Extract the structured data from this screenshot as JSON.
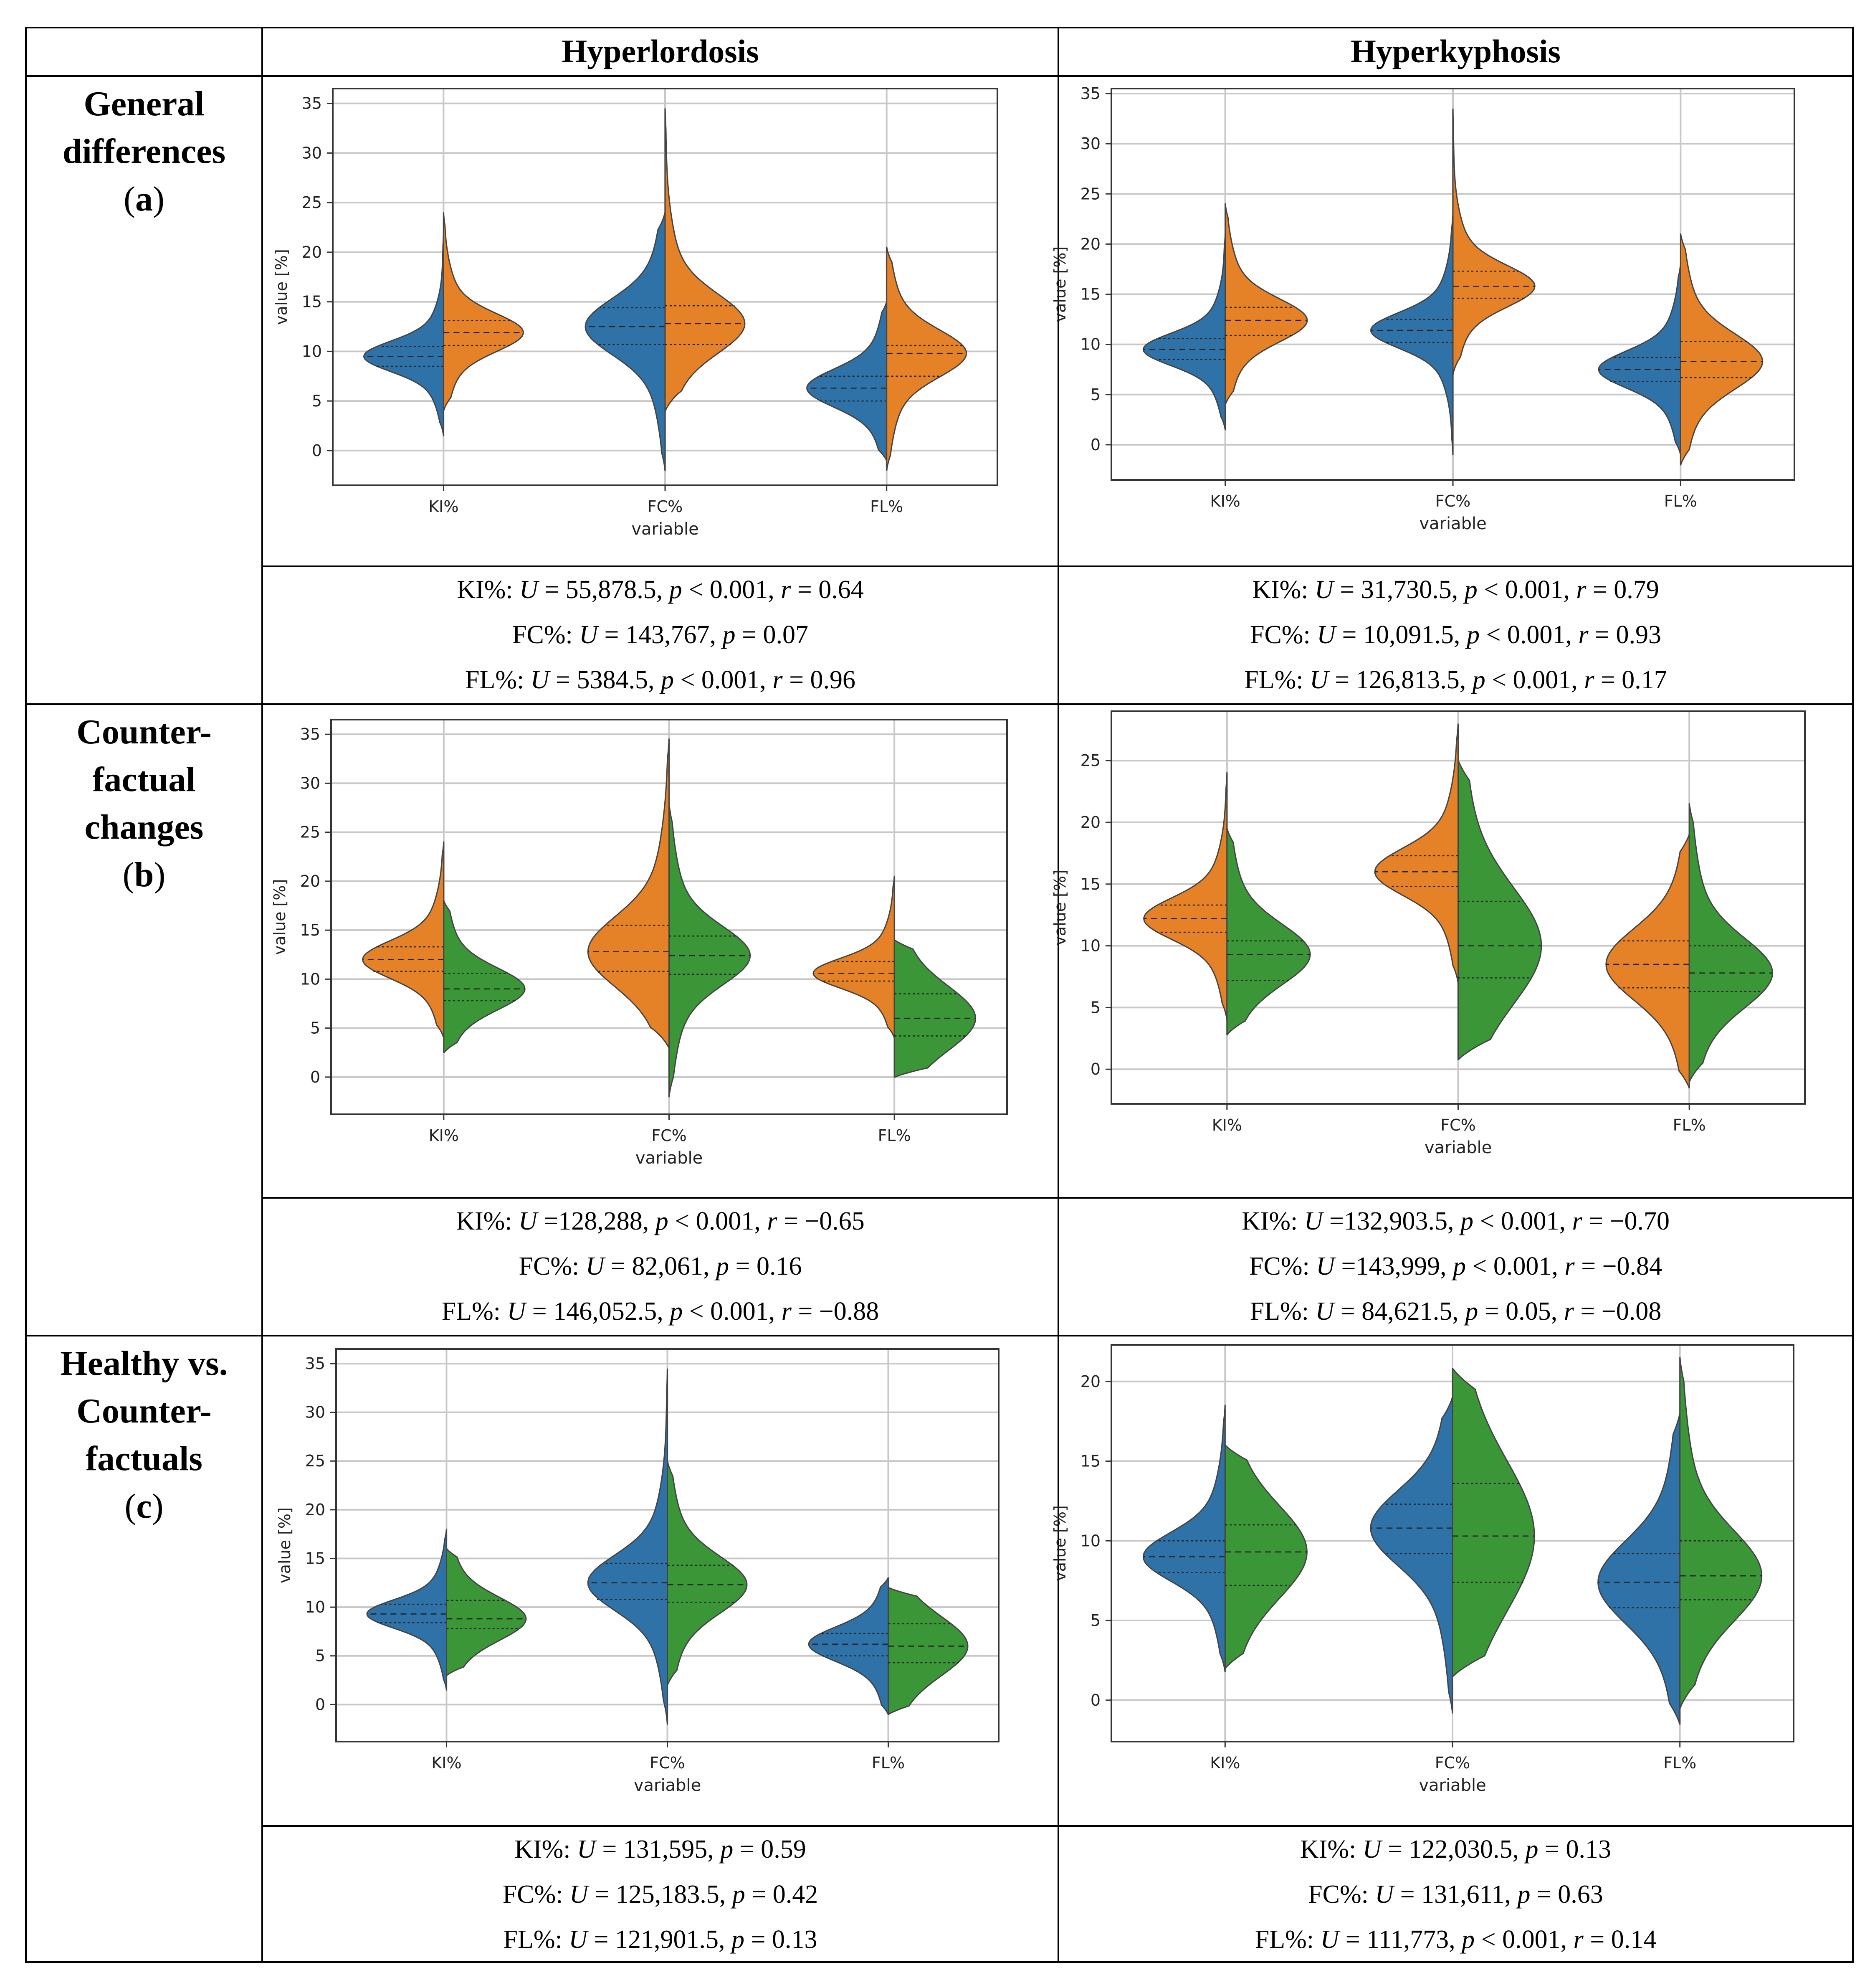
{
  "header": {
    "col1": "Hyperlordosis",
    "col2": "Hyperkyphosis"
  },
  "rows": [
    {
      "label": "General\ndifferences",
      "letter": "a"
    },
    {
      "label": "Counter-\nfactual\nchanges",
      "letter": "b"
    },
    {
      "label": "Healthy vs.\nCounter-\nfactuals",
      "letter": "c"
    }
  ],
  "colors": {
    "blue": "#2e72a8",
    "orange": "#e58126",
    "green": "#3a9637",
    "grid": "#c8c8c8"
  },
  "stats": [
    [
      [
        {
          "var": "KI%",
          "U": "55,878.5",
          "prel": "<",
          "p": "0.001",
          "r": "0.64"
        },
        {
          "var": "FC%",
          "U": "143,767",
          "prel": "=",
          "p": "0.07",
          "r": null
        },
        {
          "var": "FL%",
          "U": "5384.5",
          "prel": "<",
          "p": "0.001",
          "r": "0.96"
        }
      ],
      [
        {
          "var": "KI%",
          "U": "31,730.5",
          "prel": "<",
          "p": "0.001",
          "r": "0.79"
        },
        {
          "var": "FC%",
          "U": "10,091.5",
          "prel": "<",
          "p": "0.001",
          "r": "0.93"
        },
        {
          "var": "FL%",
          "U": "126,813.5",
          "prel": "<",
          "p": "0.001",
          "r": "0.17"
        }
      ]
    ],
    [
      [
        {
          "var": "KI%",
          "U": "128,288",
          "prel": "<",
          "p": "0.001",
          "r": "−0.65",
          "tight": true
        },
        {
          "var": "FC%",
          "U": "82,061",
          "prel": "=",
          "p": "0.16",
          "r": null
        },
        {
          "var": "FL%",
          "U": "146,052.5",
          "prel": "<",
          "p": "0.001",
          "r": "−0.88"
        }
      ],
      [
        {
          "var": "KI%",
          "U": "132,903.5",
          "prel": "<",
          "p": "0.001",
          "r": "−0.70",
          "tight": true
        },
        {
          "var": "FC%",
          "U": "143,999",
          "prel": "<",
          "p": "0.001",
          "r": "−0.84",
          "tight": true
        },
        {
          "var": "FL%",
          "U": "84,621.5",
          "prel": "=",
          "p": "0.05",
          "r": "−0.08"
        }
      ]
    ],
    [
      [
        {
          "var": "KI%",
          "U": "131,595",
          "prel": "=",
          "p": "0.59",
          "r": null
        },
        {
          "var": "FC%",
          "U": "125,183.5",
          "prel": "=",
          "p": "0.42",
          "r": null
        },
        {
          "var": "FL%",
          "U": "121,901.5",
          "prel": "=",
          "p": "0.13",
          "r": null
        }
      ],
      [
        {
          "var": "KI%",
          "U": "122,030.5",
          "prel": "=",
          "p": "0.13",
          "r": null
        },
        {
          "var": "FC%",
          "U": "131,611",
          "prel": "=",
          "p": "0.63",
          "r": null
        },
        {
          "var": "FL%",
          "U": "111,773",
          "prel": "<",
          "p": "0.001",
          "r": "0.14"
        }
      ]
    ]
  ],
  "chart_data": [
    {
      "id": "hl-a",
      "type": "violin",
      "split": true,
      "categories": [
        "KI%",
        "FC%",
        "FL%"
      ],
      "xlabel": "variable",
      "ylabel": "value [%]",
      "yticks": [
        0,
        5,
        10,
        15,
        20,
        25,
        30,
        35
      ],
      "ylim": [
        -3.5,
        36.5
      ],
      "colors": [
        "blue",
        "orange"
      ],
      "violins": [
        {
          "left": {
            "min": 1.5,
            "max": 22,
            "median": 9.5,
            "q1": 8.5,
            "q3": 10.5
          },
          "right": {
            "min": 4,
            "max": 24,
            "median": 11.9,
            "q1": 10.6,
            "q3": 13.1
          }
        },
        {
          "left": {
            "min": -2,
            "max": 24,
            "median": 12.5,
            "q1": 10.7,
            "q3": 14.4
          },
          "right": {
            "min": 4,
            "max": 34.5,
            "median": 12.8,
            "q1": 10.7,
            "q3": 14.6
          }
        },
        {
          "left": {
            "min": -1,
            "max": 15,
            "median": 6.3,
            "q1": 5,
            "q3": 7.5
          },
          "right": {
            "min": -2,
            "max": 20.5,
            "median": 9.8,
            "q1": 7.5,
            "q3": 10.6
          }
        }
      ]
    },
    {
      "id": "hk-a",
      "type": "violin",
      "split": true,
      "categories": [
        "KI%",
        "FC%",
        "FL%"
      ],
      "xlabel": "variable",
      "ylabel": "value [%]",
      "yticks": [
        0,
        5,
        10,
        15,
        20,
        25,
        30,
        35
      ],
      "ylim": [
        -3.5,
        35.5
      ],
      "colors": [
        "blue",
        "orange"
      ],
      "violins": [
        {
          "left": {
            "min": 1.5,
            "max": 21,
            "median": 9.5,
            "q1": 8.5,
            "q3": 10.6
          },
          "right": {
            "min": 4,
            "max": 24,
            "median": 12.4,
            "q1": 10.9,
            "q3": 13.7
          }
        },
        {
          "left": {
            "min": -1,
            "max": 23,
            "median": 11.4,
            "q1": 10.2,
            "q3": 12.5
          },
          "right": {
            "min": 7,
            "max": 33.5,
            "median": 15.8,
            "q1": 14.6,
            "q3": 17.3
          }
        },
        {
          "left": {
            "min": -1,
            "max": 18,
            "median": 7.5,
            "q1": 6.3,
            "q3": 8.7
          },
          "right": {
            "min": -2,
            "max": 21,
            "median": 8.3,
            "q1": 6.7,
            "q3": 10.3
          }
        }
      ]
    },
    {
      "id": "hl-b",
      "type": "violin",
      "split": true,
      "categories": [
        "KI%",
        "FC%",
        "FL%"
      ],
      "xlabel": "variable",
      "ylabel": "value [%]",
      "yticks": [
        0,
        5,
        10,
        15,
        20,
        25,
        30,
        35
      ],
      "ylim": [
        -3.8,
        36.5
      ],
      "colors": [
        "orange",
        "green"
      ],
      "violins": [
        {
          "left": {
            "min": 4,
            "max": 24,
            "median": 12,
            "q1": 10.8,
            "q3": 13.3
          },
          "right": {
            "min": 2.5,
            "max": 18,
            "median": 9,
            "q1": 7.8,
            "q3": 10.6
          }
        },
        {
          "left": {
            "min": 3,
            "max": 34.5,
            "median": 12.8,
            "q1": 10.8,
            "q3": 15.5
          },
          "right": {
            "min": -2,
            "max": 28,
            "median": 12.4,
            "q1": 10.5,
            "q3": 14.4
          }
        },
        {
          "left": {
            "min": 4,
            "max": 20.5,
            "median": 10.6,
            "q1": 9.8,
            "q3": 11.8
          },
          "right": {
            "min": 0,
            "max": 14,
            "median": 6,
            "q1": 4.2,
            "q3": 8.5
          }
        }
      ]
    },
    {
      "id": "hk-b",
      "type": "violin",
      "split": true,
      "categories": [
        "KI%",
        "FC%",
        "FL%"
      ],
      "xlabel": "variable",
      "ylabel": "value [%]",
      "yticks": [
        0,
        5,
        10,
        15,
        20,
        25
      ],
      "ylim": [
        -2.8,
        29
      ],
      "colors": [
        "orange",
        "green"
      ],
      "violins": [
        {
          "left": {
            "min": 4,
            "max": 24,
            "median": 12.2,
            "q1": 11.1,
            "q3": 13.3
          },
          "right": {
            "min": 2.8,
            "max": 19.5,
            "median": 9.3,
            "q1": 7.2,
            "q3": 10.4
          }
        },
        {
          "left": {
            "min": 7,
            "max": 28,
            "median": 16,
            "q1": 14.8,
            "q3": 17.3
          },
          "right": {
            "min": 0.8,
            "max": 25,
            "median": 10,
            "q1": 7.4,
            "q3": 13.6
          }
        },
        {
          "left": {
            "min": -1.5,
            "max": 19,
            "median": 8.5,
            "q1": 6.6,
            "q3": 10.4
          },
          "right": {
            "min": -1,
            "max": 21.5,
            "median": 7.8,
            "q1": 6.3,
            "q3": 10
          }
        }
      ]
    },
    {
      "id": "hl-c",
      "type": "violin",
      "split": true,
      "categories": [
        "KI%",
        "FC%",
        "FL%"
      ],
      "xlabel": "variable",
      "ylabel": "value [%]",
      "yticks": [
        0,
        5,
        10,
        15,
        20,
        25,
        30,
        35
      ],
      "ylim": [
        -3.8,
        36.5
      ],
      "colors": [
        "blue",
        "green"
      ],
      "violins": [
        {
          "left": {
            "min": 1.5,
            "max": 18,
            "median": 9.3,
            "q1": 8.4,
            "q3": 10.3
          },
          "right": {
            "min": 3,
            "max": 16,
            "median": 8.8,
            "q1": 7.8,
            "q3": 10.7
          }
        },
        {
          "left": {
            "min": -2,
            "max": 34.5,
            "median": 12.5,
            "q1": 10.8,
            "q3": 14.5
          },
          "right": {
            "min": 2,
            "max": 25,
            "median": 12.3,
            "q1": 10.5,
            "q3": 14.3
          }
        },
        {
          "left": {
            "min": -1,
            "max": 13,
            "median": 6.2,
            "q1": 5,
            "q3": 7.3
          },
          "right": {
            "min": -1,
            "max": 12,
            "median": 6,
            "q1": 4.3,
            "q3": 8.3
          }
        }
      ]
    },
    {
      "id": "hk-c",
      "type": "violin",
      "split": true,
      "categories": [
        "KI%",
        "FC%",
        "FL%"
      ],
      "xlabel": "variable",
      "ylabel": "value [%]",
      "yticks": [
        0,
        5,
        10,
        15,
        20
      ],
      "ylim": [
        -2.6,
        22.3
      ],
      "colors": [
        "blue",
        "green"
      ],
      "violins": [
        {
          "left": {
            "min": 1.8,
            "max": 18.5,
            "median": 9,
            "q1": 8,
            "q3": 10
          },
          "right": {
            "min": 2,
            "max": 16,
            "median": 9.3,
            "q1": 7.2,
            "q3": 11
          }
        },
        {
          "left": {
            "min": -0.8,
            "max": 19,
            "median": 10.8,
            "q1": 9.2,
            "q3": 12.3
          },
          "right": {
            "min": 1.5,
            "max": 20.8,
            "median": 10.3,
            "q1": 7.4,
            "q3": 13.6
          }
        },
        {
          "left": {
            "min": -1.5,
            "max": 18,
            "median": 7.4,
            "q1": 5.8,
            "q3": 9.2
          },
          "right": {
            "min": -0.5,
            "max": 21.5,
            "median": 7.8,
            "q1": 6.3,
            "q3": 10
          }
        }
      ]
    }
  ]
}
